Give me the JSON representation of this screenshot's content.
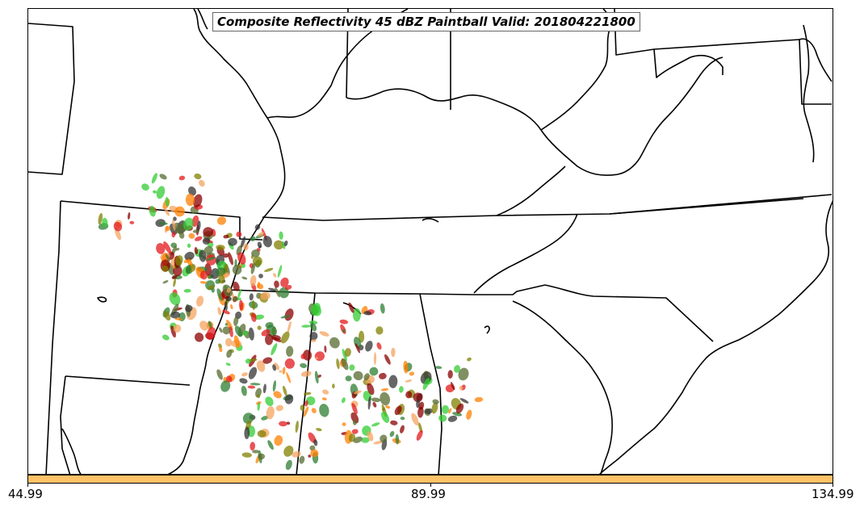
{
  "map": {
    "title": "Composite Reflectivity 45 dBZ Paintball Valid: 201804221800",
    "colorbar": {
      "color": "#ffc266",
      "ticks": [
        "44.99",
        "89.99",
        "134.99"
      ]
    },
    "member_colors": [
      "#e31a1c",
      "#ff7f00",
      "#33cc33",
      "#2e7d32",
      "#8b0000",
      "#556b2f",
      "#808000",
      "#333333",
      "#f4a460"
    ]
  }
}
